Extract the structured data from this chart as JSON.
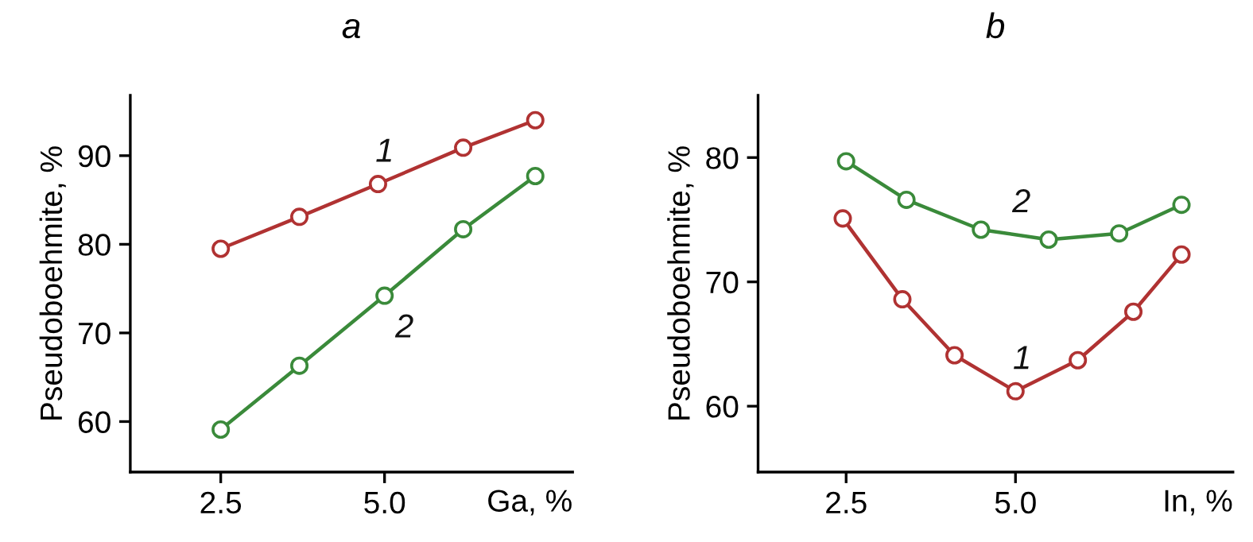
{
  "chart_data": [
    {
      "type": "line",
      "title": "a",
      "xlabel": "Ga, %",
      "ylabel": "Pseudoboehmite, %",
      "xlim": [
        1.12,
        7.87
      ],
      "ylim": [
        54.3,
        96.8
      ],
      "xticks": [
        2.5,
        {
          "value": 5.0,
          "label": "5.0"
        }
      ],
      "yticks": [
        60,
        70,
        80,
        90
      ],
      "marker": "circle",
      "grid": false,
      "legend": false,
      "series": [
        {
          "color": "#b03232",
          "x": [
            2.5,
            3.7,
            4.9,
            6.2,
            7.3
          ],
          "values": [
            79.5,
            83.1,
            86.8,
            90.9,
            94.0
          ]
        },
        {
          "color": "#3a8a3a",
          "x": [
            2.5,
            3.7,
            5.0,
            6.2,
            7.3
          ],
          "values": [
            59.1,
            66.3,
            74.2,
            81.7,
            87.7
          ]
        }
      ],
      "annotations": [
        "1",
        "2"
      ]
    },
    {
      "type": "line",
      "title": "b",
      "xlabel": "In, %",
      "ylabel": "Pseudoboehmite, %",
      "xlim": [
        1.2,
        8.21
      ],
      "ylim": [
        54.7,
        85
      ],
      "xticks": [
        2.5,
        {
          "value": 5.0,
          "label": "5.0"
        }
      ],
      "yticks": [
        60,
        70,
        80
      ],
      "marker": "circle",
      "grid": false,
      "legend": false,
      "series": [
        {
          "color": "#3a8a3a",
          "x": [
            2.5,
            3.39,
            4.49,
            5.49,
            6.53,
            7.45
          ],
          "values": [
            79.7,
            76.6,
            74.2,
            73.4,
            73.9,
            76.2
          ]
        },
        {
          "color": "#b03232",
          "x": [
            2.45,
            3.33,
            4.1,
            5.0,
            5.92,
            6.74,
            7.45
          ],
          "values": [
            75.1,
            68.6,
            64.1,
            61.2,
            63.7,
            67.6,
            72.2
          ]
        }
      ],
      "annotations": [
        "2",
        "1"
      ]
    }
  ]
}
